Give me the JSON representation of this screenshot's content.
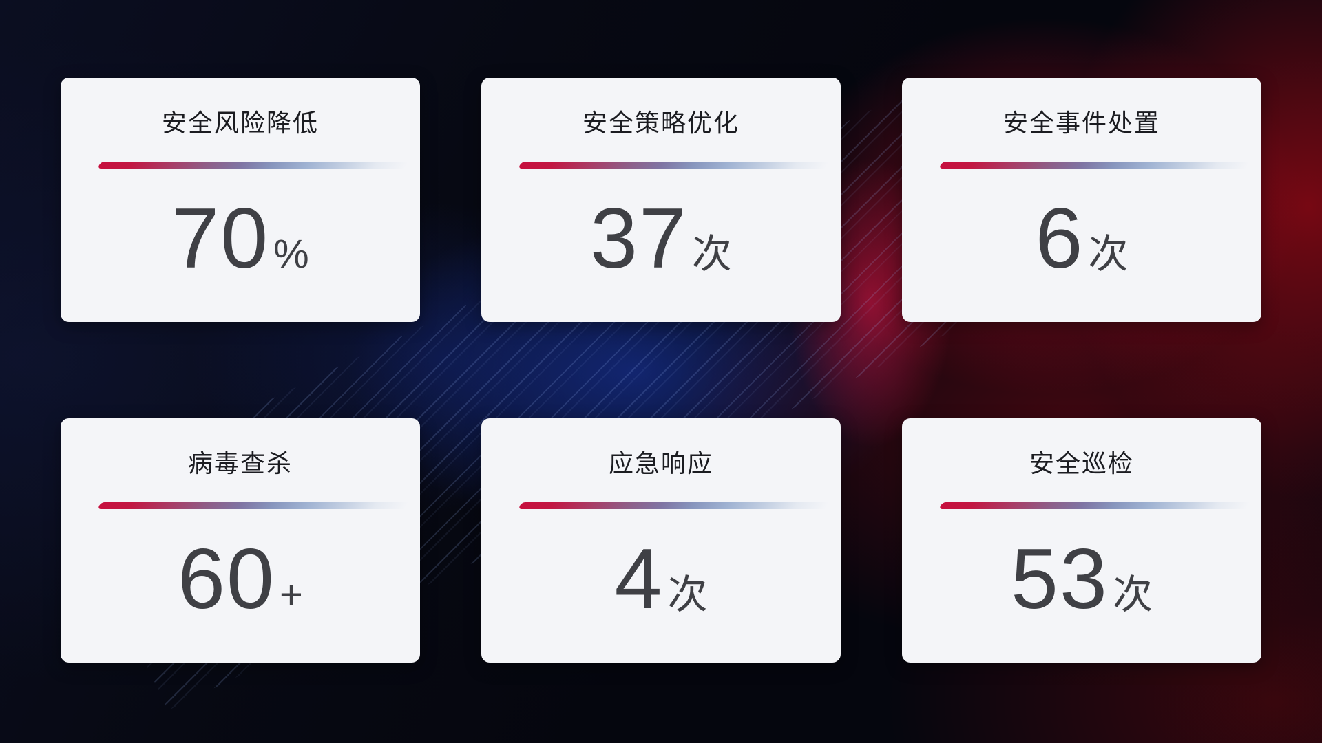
{
  "cards": [
    {
      "title": "安全风险降低",
      "value": "70",
      "suffix": "%"
    },
    {
      "title": "安全策略优化",
      "value": "37",
      "suffix": "次"
    },
    {
      "title": "安全事件处置",
      "value": "6",
      "suffix": "次"
    },
    {
      "title": "病毒查杀",
      "value": "60",
      "suffix": "+"
    },
    {
      "title": "应急响应",
      "value": "4",
      "suffix": "次"
    },
    {
      "title": "安全巡检",
      "value": "53",
      "suffix": "次"
    }
  ],
  "colors": {
    "accent_red": "#c60f3e",
    "accent_slate_blue": "#8795bd",
    "divider_fade": "#e4e9f1",
    "card_background": "#f4f5f8",
    "title_color": "#1b1c21",
    "number_color": "#3f4045",
    "background_base": "#05060e",
    "background_red_glow": "#9e0a1e",
    "background_crimson_glow": "#d61646",
    "background_blue_glow": "#18349e",
    "background_maroon_corner": "#4a070d"
  }
}
